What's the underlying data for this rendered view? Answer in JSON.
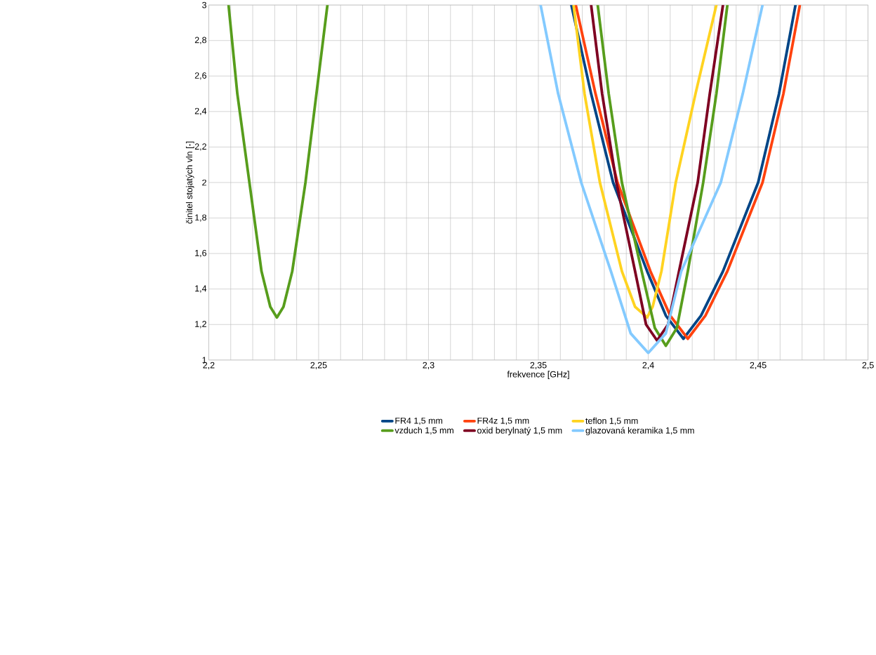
{
  "chart_data": {
    "type": "line",
    "xlabel": "frekvence [GHz]",
    "ylabel": "činitel stojatých vln [-]",
    "xlim": [
      2.2,
      2.5
    ],
    "ylim": [
      1,
      3
    ],
    "xticks": [
      {
        "value": 2.2,
        "label": "2,2"
      },
      {
        "value": 2.21,
        "label": null
      },
      {
        "value": 2.22,
        "label": null
      },
      {
        "value": 2.23,
        "label": null
      },
      {
        "value": 2.24,
        "label": null
      },
      {
        "value": 2.25,
        "label": "2,25"
      },
      {
        "value": 2.26,
        "label": null
      },
      {
        "value": 2.27,
        "label": null
      },
      {
        "value": 2.28,
        "label": null
      },
      {
        "value": 2.29,
        "label": null
      },
      {
        "value": 2.3,
        "label": "2,3"
      },
      {
        "value": 2.31,
        "label": null
      },
      {
        "value": 2.32,
        "label": null
      },
      {
        "value": 2.33,
        "label": null
      },
      {
        "value": 2.34,
        "label": null
      },
      {
        "value": 2.35,
        "label": "2,35"
      },
      {
        "value": 2.36,
        "label": null
      },
      {
        "value": 2.37,
        "label": null
      },
      {
        "value": 2.38,
        "label": null
      },
      {
        "value": 2.39,
        "label": null
      },
      {
        "value": 2.4,
        "label": "2,4"
      },
      {
        "value": 2.41,
        "label": null
      },
      {
        "value": 2.42,
        "label": null
      },
      {
        "value": 2.43,
        "label": null
      },
      {
        "value": 2.44,
        "label": null
      },
      {
        "value": 2.45,
        "label": "2,45"
      },
      {
        "value": 2.46,
        "label": null
      },
      {
        "value": 2.47,
        "label": null
      },
      {
        "value": 2.48,
        "label": null
      },
      {
        "value": 2.49,
        "label": null
      },
      {
        "value": 2.5,
        "label": "2,5"
      }
    ],
    "yticks": [
      {
        "value": 1,
        "label": "1"
      },
      {
        "value": 1.2,
        "label": "1,2"
      },
      {
        "value": 1.4,
        "label": "1,4"
      },
      {
        "value": 1.6,
        "label": "1,6"
      },
      {
        "value": 1.8,
        "label": "1,8"
      },
      {
        "value": 2,
        "label": "2"
      },
      {
        "value": 2.2,
        "label": "2,2"
      },
      {
        "value": 2.4,
        "label": "2,4"
      },
      {
        "value": 2.6,
        "label": "2,6"
      },
      {
        "value": 2.8,
        "label": "2,8"
      },
      {
        "value": 3,
        "label": "3"
      }
    ],
    "grid": true,
    "legend": "bottom",
    "marker": "none",
    "line_style": "solid",
    "series": [
      {
        "name": "FR4 1,5 mm",
        "color": "#004586",
        "x": [
          2.365,
          2.374,
          2.384,
          2.3995,
          2.408,
          2.416,
          2.424,
          2.434,
          2.45,
          2.4595,
          2.467
        ],
        "values": [
          3,
          2.5,
          2,
          1.5,
          1.25,
          1.12,
          1.25,
          1.5,
          2,
          2.5,
          3
        ]
      },
      {
        "name": "FR4z 1,5 mm",
        "color": "#ff420e",
        "x": [
          2.367,
          2.376,
          2.386,
          2.401,
          2.41,
          2.418,
          2.426,
          2.436,
          2.452,
          2.4615,
          2.469
        ],
        "values": [
          3,
          2.5,
          2,
          1.5,
          1.25,
          1.12,
          1.25,
          1.5,
          2,
          2.5,
          3
        ]
      },
      {
        "name": "teflon 1,5 mm",
        "color": "#ffd320",
        "x": [
          2.366,
          2.371,
          2.378,
          2.388,
          2.394,
          2.3995,
          2.402,
          2.406,
          2.4125,
          2.4215,
          2.431
        ],
        "values": [
          3,
          2.5,
          2,
          1.5,
          1.3,
          1.24,
          1.3,
          1.5,
          2,
          2.5,
          3
        ]
      },
      {
        "name": "vzduch 1,5 mm",
        "color": "#579d1c",
        "x": [
          2.209,
          2.213,
          2.2185,
          2.224,
          2.228,
          2.231,
          2.234,
          2.238,
          2.244,
          2.249,
          2.254,
          2.3,
          2.377,
          2.382,
          2.388,
          2.397,
          2.403,
          2.408,
          2.413,
          2.418,
          2.425,
          2.431,
          2.436
        ],
        "values": [
          3,
          2.5,
          2,
          1.5,
          1.3,
          1.24,
          1.3,
          1.5,
          2,
          2.5,
          3,
          null,
          3,
          2.5,
          2,
          1.5,
          1.18,
          1.08,
          1.18,
          1.5,
          2,
          2.5,
          3
        ]
      },
      {
        "name": "oxid berylnatý 1,5 mm",
        "color": "#7e0021",
        "x": [
          2.374,
          2.379,
          2.3855,
          2.394,
          2.399,
          2.404,
          2.409,
          2.414,
          2.4225,
          2.428,
          2.434
        ],
        "values": [
          3,
          2.5,
          2,
          1.5,
          1.2,
          1.11,
          1.2,
          1.5,
          2,
          2.5,
          3
        ]
      },
      {
        "name": "glazovaná keramika 1,5 mm",
        "color": "#83caff",
        "x": [
          2.351,
          2.359,
          2.3695,
          2.383,
          2.392,
          2.4,
          2.408,
          2.415,
          2.433,
          2.443,
          2.452
        ],
        "values": [
          3,
          2.5,
          2,
          1.5,
          1.15,
          1.04,
          1.15,
          1.5,
          2,
          2.5,
          3
        ]
      }
    ]
  }
}
